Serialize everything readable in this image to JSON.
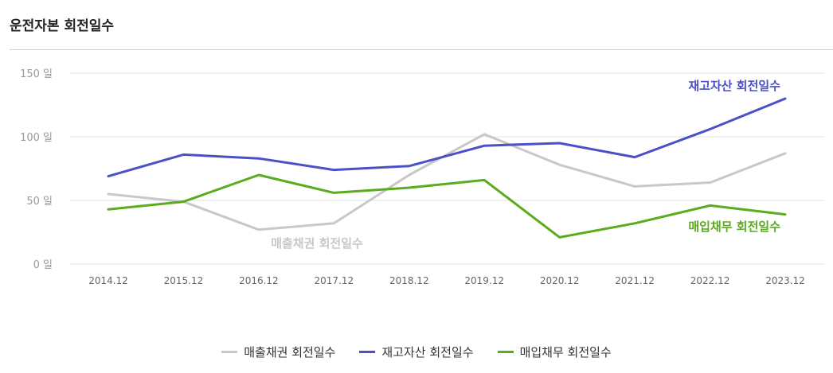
{
  "header": {
    "title": "운전자본 회전일수"
  },
  "chart_data": {
    "type": "line",
    "title": "운전자본 회전일수",
    "categories": [
      "2014.12",
      "2015.12",
      "2016.12",
      "2017.12",
      "2018.12",
      "2019.12",
      "2020.12",
      "2021.12",
      "2022.12",
      "2023.12"
    ],
    "y_ticks": [
      "0 일",
      "50 일",
      "100 일",
      "150 일"
    ],
    "ylim": [
      0,
      150
    ],
    "grid": true,
    "legend_position": "bottom",
    "series": [
      {
        "name": "매출채권 회전일수",
        "color": "#c8c8c8",
        "values": [
          55,
          49,
          27,
          32,
          70,
          102,
          78,
          61,
          64,
          87
        ]
      },
      {
        "name": "재고자산 회전일수",
        "color": "#4a50c8",
        "values": [
          69,
          86,
          83,
          74,
          77,
          93,
          95,
          84,
          106,
          130
        ]
      },
      {
        "name": "매입채무 회전일수",
        "color": "#5aac1e",
        "values": [
          43,
          49,
          70,
          56,
          60,
          66,
          21,
          32,
          46,
          39
        ]
      }
    ]
  }
}
